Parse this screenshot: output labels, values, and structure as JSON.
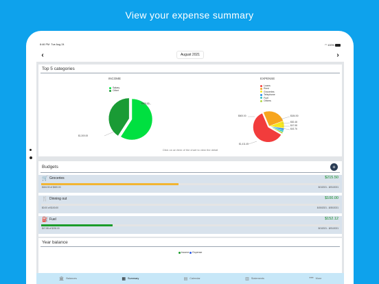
{
  "headline": "View your expense summary",
  "status": {
    "time": "8:46 PM",
    "date": "Tue Aug 24",
    "battery": "100%",
    "wifi_icon": "wifi-icon",
    "battery_icon": "battery-icon"
  },
  "nav": {
    "month": "August 2021",
    "prev_icon": "chevron-left-icon",
    "next_icon": "chevron-right-icon"
  },
  "categories": {
    "title": "Top 5 categories",
    "hint": "Click on an item of the chart to view the detail",
    "income": {
      "title": "INCOME",
      "legend": [
        "Salary",
        "Other"
      ],
      "labels": [
        "$900.00",
        "$1,300.00"
      ]
    },
    "expense": {
      "title": "EXPENSE",
      "legend": [
        "Loans",
        "Rent",
        "Groceries",
        "Telephone",
        "Fuel",
        "Others"
      ],
      "labels": [
        "$600.00",
        "$184.50",
        "$52.48",
        "$47.58",
        "$43.76",
        "$1,411.45"
      ]
    }
  },
  "chart_data": [
    {
      "type": "pie",
      "title": "INCOME",
      "categories": [
        "Salary",
        "Other"
      ],
      "values": [
        1300,
        900
      ],
      "colors": [
        "#00e040",
        "#1a9b35"
      ]
    },
    {
      "type": "pie",
      "title": "EXPENSE",
      "categories": [
        "Loans",
        "Rent",
        "Groceries",
        "Telephone",
        "Fuel",
        "Others"
      ],
      "values": [
        1411.45,
        600,
        184.5,
        52.48,
        47.58,
        43.76
      ],
      "colors": [
        "#f23c3c",
        "#f7a51e",
        "#f7e81e",
        "#2c8ae8",
        "#2ec4c4",
        "#b0d848"
      ]
    }
  ],
  "budgets": {
    "title": "Budgets",
    "add_label": "+",
    "items": [
      {
        "name": "Groceries",
        "amount": "$215.50",
        "spent": "$184.50 of $400.00",
        "dates": "8/1/2021 - 8/31/2021",
        "progress": 0.46,
        "color": "#f2b531",
        "icon": "cart-icon",
        "glyph": "🛒"
      },
      {
        "name": "Dinning out",
        "amount": "$100.00",
        "spent": "$0.00 of $100.00",
        "dates": "8/15/2021 - 8/30/2021",
        "progress": 0.0,
        "color": "#1b9c2a",
        "icon": "fork-knife-icon",
        "glyph": "🍴"
      },
      {
        "name": "Fuel",
        "amount": "$152.12",
        "spent": "$47.88 of $200.00",
        "dates": "8/1/2021 - 8/31/2021",
        "progress": 0.24,
        "color": "#1b9c2a",
        "icon": "fuel-pump-icon",
        "glyph": "⛽"
      }
    ]
  },
  "year_balance": {
    "title": "Year balance",
    "legend": [
      "Income",
      "Expense"
    ]
  },
  "tabs": [
    {
      "label": "Balances",
      "icon": "bank-icon",
      "glyph": "🏛",
      "active": false
    },
    {
      "label": "Summary",
      "icon": "chart-icon",
      "glyph": "▦",
      "active": true
    },
    {
      "label": "Calendar",
      "icon": "calendar-icon",
      "glyph": "▤",
      "active": false
    },
    {
      "label": "Statements",
      "icon": "document-icon",
      "glyph": "▥",
      "active": false
    },
    {
      "label": "More",
      "icon": "more-icon",
      "glyph": "•••",
      "active": false
    }
  ]
}
